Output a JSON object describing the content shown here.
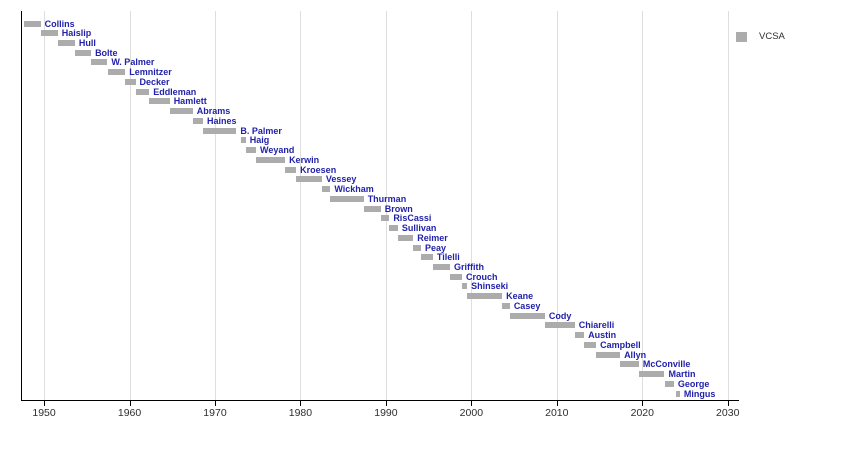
{
  "chart_data": {
    "type": "gantt",
    "title": "",
    "xlabel": "",
    "ylabel": "",
    "grid": true,
    "legend": {
      "label": "VCSA",
      "position": "top-right"
    },
    "x_ticks": [
      1950,
      1960,
      1970,
      1980,
      1990,
      2000,
      2010,
      2020,
      2030
    ],
    "xlim": [
      1947.3,
      2031.2
    ],
    "colors": {
      "bar": "#acacac",
      "name_label": "#2222aa",
      "axis": "#000000",
      "tick_label": "#2e2e2e",
      "gridline": "#dedede"
    },
    "bars": [
      {
        "name": "Collins",
        "start": 1947.7,
        "end": 1949.6
      },
      {
        "name": "Haislip",
        "start": 1949.6,
        "end": 1951.6
      },
      {
        "name": "Hull",
        "start": 1951.6,
        "end": 1953.6
      },
      {
        "name": "Bolte",
        "start": 1953.6,
        "end": 1955.5
      },
      {
        "name": "W. Palmer",
        "start": 1955.5,
        "end": 1957.4
      },
      {
        "name": "Lemnitzer",
        "start": 1957.5,
        "end": 1959.5
      },
      {
        "name": "Decker",
        "start": 1959.5,
        "end": 1960.7
      },
      {
        "name": "Eddleman",
        "start": 1960.8,
        "end": 1962.3
      },
      {
        "name": "Hamlett",
        "start": 1962.3,
        "end": 1964.7
      },
      {
        "name": "Abrams",
        "start": 1964.7,
        "end": 1967.4
      },
      {
        "name": "Haines",
        "start": 1967.4,
        "end": 1968.6
      },
      {
        "name": "B. Palmer",
        "start": 1968.6,
        "end": 1972.5
      },
      {
        "name": "Haig",
        "start": 1973.0,
        "end": 1973.6
      },
      {
        "name": "Weyand",
        "start": 1973.6,
        "end": 1974.8
      },
      {
        "name": "Kerwin",
        "start": 1974.8,
        "end": 1978.2
      },
      {
        "name": "Kroesen",
        "start": 1978.2,
        "end": 1979.5
      },
      {
        "name": "Vessey",
        "start": 1979.5,
        "end": 1982.5
      },
      {
        "name": "Wickham",
        "start": 1982.5,
        "end": 1983.5
      },
      {
        "name": "Thurman",
        "start": 1983.5,
        "end": 1987.4
      },
      {
        "name": "Brown",
        "start": 1987.4,
        "end": 1989.4
      },
      {
        "name": "RisCassi",
        "start": 1989.4,
        "end": 1990.4
      },
      {
        "name": "Sullivan",
        "start": 1990.4,
        "end": 1991.4
      },
      {
        "name": "Reimer",
        "start": 1991.4,
        "end": 1993.2
      },
      {
        "name": "Peay",
        "start": 1993.2,
        "end": 1994.1
      },
      {
        "name": "Tilelli",
        "start": 1994.1,
        "end": 1995.5
      },
      {
        "name": "Griffith",
        "start": 1995.5,
        "end": 1997.5
      },
      {
        "name": "Crouch",
        "start": 1997.5,
        "end": 1998.9
      },
      {
        "name": "Shinseki",
        "start": 1998.9,
        "end": 1999.5
      },
      {
        "name": "Keane",
        "start": 1999.5,
        "end": 2003.6
      },
      {
        "name": "Casey",
        "start": 2003.6,
        "end": 2004.5
      },
      {
        "name": "Cody",
        "start": 2004.5,
        "end": 2008.6
      },
      {
        "name": "Chiarelli",
        "start": 2008.6,
        "end": 2012.1
      },
      {
        "name": "Austin",
        "start": 2012.1,
        "end": 2013.2
      },
      {
        "name": "Campbell",
        "start": 2013.2,
        "end": 2014.6
      },
      {
        "name": "Allyn",
        "start": 2014.6,
        "end": 2017.4
      },
      {
        "name": "McConville",
        "start": 2017.4,
        "end": 2019.6
      },
      {
        "name": "Martin",
        "start": 2019.6,
        "end": 2022.6
      },
      {
        "name": "George",
        "start": 2022.6,
        "end": 2023.7
      },
      {
        "name": "Mingus",
        "start": 2024.0,
        "end": 2024.4
      }
    ]
  }
}
